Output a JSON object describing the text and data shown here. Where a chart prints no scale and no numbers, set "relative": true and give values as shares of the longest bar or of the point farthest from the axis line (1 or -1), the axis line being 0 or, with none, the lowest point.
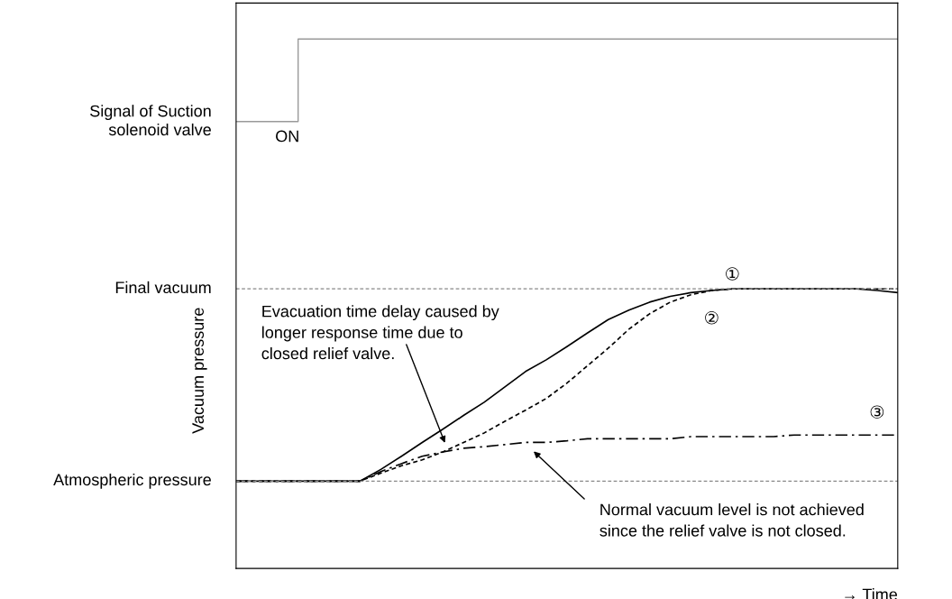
{
  "chart_data": {
    "type": "line",
    "relative": true,
    "xlabel": "→ Time",
    "ylabel": "Vacuum pressure",
    "categories": [
      null,
      null,
      null,
      null,
      null,
      null,
      null,
      null,
      null,
      null,
      null,
      null,
      null,
      null,
      null,
      null,
      null,
      null,
      null,
      null,
      null,
      null,
      null,
      null,
      null,
      null,
      null,
      null,
      null,
      null,
      null,
      null,
      null
    ],
    "series": [
      {
        "type": "step",
        "color": "#999999",
        "line_style": "solid",
        "values": [
          0.844,
          0.844,
          0.844,
          1,
          1,
          1,
          1,
          1,
          1,
          1,
          1,
          1,
          1,
          1,
          1,
          1,
          1,
          1,
          1,
          1,
          1,
          1,
          1,
          1,
          1,
          1,
          1,
          1,
          1,
          1,
          1,
          1,
          1
        ]
      },
      {
        "name": "①",
        "color": "#000000",
        "line_style": "solid",
        "values": [
          0.165,
          0.165,
          0.165,
          0.165,
          0.165,
          0.165,
          0.165,
          0.187,
          0.212,
          0.238,
          0.263,
          0.289,
          0.314,
          0.343,
          0.372,
          0.394,
          0.419,
          0.445,
          0.47,
          0.488,
          0.503,
          0.514,
          0.521,
          0.525,
          0.528,
          0.528,
          0.528,
          0.528,
          0.528,
          0.528,
          0.528,
          0.525,
          0.521
        ]
      },
      {
        "name": "②",
        "color": "#000000",
        "line_style": "dashed",
        "values": [
          0.165,
          0.165,
          0.165,
          0.165,
          0.165,
          0.165,
          0.165,
          0.18,
          0.194,
          0.205,
          0.22,
          0.238,
          0.256,
          0.278,
          0.299,
          0.321,
          0.35,
          0.383,
          0.416,
          0.452,
          0.481,
          0.503,
          0.517,
          0.525,
          0.528,
          0.528,
          0.528,
          0.528,
          0.528,
          0.528,
          0.528,
          0.528,
          0.528
        ]
      },
      {
        "name": "③",
        "color": "#000000",
        "line_style": "dashdot",
        "values": [
          0.165,
          0.165,
          0.165,
          0.165,
          0.165,
          0.165,
          0.165,
          0.183,
          0.198,
          0.212,
          0.22,
          0.227,
          0.23,
          0.234,
          0.238,
          0.238,
          0.241,
          0.245,
          0.245,
          0.245,
          0.245,
          0.245,
          0.249,
          0.249,
          0.249,
          0.249,
          0.249,
          0.252,
          0.252,
          0.252,
          0.252,
          0.252,
          0.252
        ]
      }
    ],
    "ref_lines": [
      {
        "axis": "y",
        "value": 0.165,
        "label": "Atmospheric pressure",
        "color": "#888888",
        "line_style": "dashed"
      },
      {
        "axis": "y",
        "value": 0.528,
        "label": "Final vacuum",
        "color": "#888888",
        "line_style": "dashed"
      }
    ],
    "annotations": [
      "Signal of Suction\nsolenoid valve",
      "ON",
      "Evacuation time delay caused by\nlonger response time due to\nclosed relief valve.",
      "Normal vacuum level is not achieved\nsince the relief valve is not closed."
    ],
    "legend": false
  }
}
